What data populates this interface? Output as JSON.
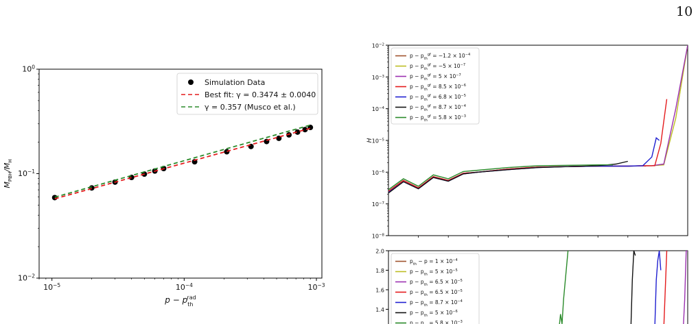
{
  "page_number": "10",
  "chart_data": [
    {
      "type": "scatter",
      "xlabel": "p − p_th^rad",
      "ylabel": "M_PBH/M_H",
      "x_scale": "log",
      "y_scale": "log",
      "xlim": [
        8e-06,
        0.0011
      ],
      "ylim": [
        0.01,
        1
      ],
      "x_ticks": [
        {
          "value": 1e-05,
          "label": "10",
          "exp": "−5"
        },
        {
          "value": 0.0001,
          "label": "10",
          "exp": "−4"
        },
        {
          "value": 0.001,
          "label": "10",
          "exp": "−3"
        }
      ],
      "y_ticks": [
        {
          "value": 0.01,
          "label": "10",
          "exp": "−2"
        },
        {
          "value": 0.1,
          "label": "10",
          "exp": "−1"
        },
        {
          "value": 1,
          "label": "10",
          "exp": "0"
        }
      ],
      "legend_position": "top-right",
      "series": [
        {
          "name": "Simulation Data",
          "kind": "points",
          "color": "#000000",
          "x": [
            1.05e-05,
            2e-05,
            3e-05,
            4e-05,
            5e-05,
            6e-05,
            7e-05,
            0.00012,
            0.00021,
            0.00032,
            0.00042,
            0.00052,
            0.00062,
            0.00072,
            0.00082,
            0.0009
          ],
          "y": [
            0.059,
            0.073,
            0.083,
            0.092,
            0.099,
            0.106,
            0.112,
            0.13,
            0.162,
            0.182,
            0.203,
            0.218,
            0.235,
            0.25,
            0.264,
            0.277
          ]
        },
        {
          "name": "Best fit: γ = 0.3474 ± 0.0040",
          "kind": "line",
          "style": "dashed",
          "color": "#e41a1c",
          "x": [
            1.05e-05,
            0.0009
          ],
          "y": [
            0.0575,
            0.2719
          ]
        },
        {
          "name": "γ = 0.357 (Musco et al.)",
          "kind": "line",
          "style": "dashed",
          "color": "#2a8a2a",
          "x": [
            1.05e-05,
            0.0009
          ],
          "y": [
            0.0595,
            0.2915
          ]
        }
      ]
    },
    {
      "type": "line",
      "ylabel": "H",
      "y_scale": "log",
      "xlim": [
        0,
        10
      ],
      "ylim": [
        1e-08,
        0.01
      ],
      "y_ticks": [
        {
          "value": 1e-08,
          "label": "10",
          "exp": "−8"
        },
        {
          "value": 1e-07,
          "label": "10",
          "exp": "−7"
        },
        {
          "value": 1e-06,
          "label": "10",
          "exp": "−6"
        },
        {
          "value": 1e-05,
          "label": "10",
          "exp": "−5"
        },
        {
          "value": 0.0001,
          "label": "10",
          "exp": "−4"
        },
        {
          "value": 0.001,
          "label": "10",
          "exp": "−3"
        },
        {
          "value": 0.01,
          "label": "10",
          "exp": "−2"
        }
      ],
      "legend_position": "top-left",
      "series": [
        {
          "name": "p − p_th^gf = −1.2 × 10^−4",
          "color": "#a0522d",
          "x": [
            0,
            0.5,
            1,
            1.5,
            2,
            2.5,
            3,
            4,
            5,
            6,
            7,
            8,
            8.4,
            8.6
          ],
          "y": [
            2.5e-07,
            5.5e-07,
            3.2e-07,
            7.2e-07,
            5.5e-07,
            9.2e-07,
            1e-06,
            1.25e-06,
            1.45e-06,
            1.5e-06,
            1.55e-06,
            1.55e-06,
            1.6e-06,
            1.55e-06
          ]
        },
        {
          "name": "p − p_th^gf = −5 × 10^−7",
          "color": "#bcbd22",
          "x": [
            0,
            0.5,
            1,
            1.5,
            2,
            2.5,
            3,
            4,
            5,
            6,
            7,
            8,
            8.8,
            9.2,
            9.6,
            10
          ],
          "y": [
            2.5e-07,
            5.5e-07,
            3.2e-07,
            7.2e-07,
            5.5e-07,
            9.2e-07,
            1e-06,
            1.25e-06,
            1.45e-06,
            1.5e-06,
            1.55e-06,
            1.55e-06,
            1.6e-06,
            1.7e-06,
            5e-05,
            0.01
          ]
        },
        {
          "name": "p − p_th^gf = 5 × 10^−7",
          "color": "#9b30b0",
          "x": [
            0,
            0.5,
            1,
            1.5,
            2,
            2.5,
            3,
            4,
            5,
            6,
            7,
            8,
            8.8,
            9.2,
            9.6,
            10
          ],
          "y": [
            2.5e-07,
            5.5e-07,
            3.2e-07,
            7.2e-07,
            5.5e-07,
            9.2e-07,
            1e-06,
            1.25e-06,
            1.45e-06,
            1.5e-06,
            1.55e-06,
            1.55e-06,
            1.6e-06,
            1.8e-06,
            0.0001,
            0.01
          ]
        },
        {
          "name": "p − p_th^gf = 8.5 × 10^−6",
          "color": "#e41a1c",
          "x": [
            0,
            0.5,
            1,
            1.5,
            2,
            2.5,
            3,
            4,
            5,
            6,
            7,
            8,
            8.5,
            8.9,
            9.1,
            9.3
          ],
          "y": [
            2.5e-07,
            5.5e-07,
            3.2e-07,
            7.2e-07,
            5.5e-07,
            9.2e-07,
            1e-06,
            1.25e-06,
            1.45e-06,
            1.5e-06,
            1.55e-06,
            1.55e-06,
            1.6e-06,
            1.6e-06,
            8e-06,
            0.0002
          ]
        },
        {
          "name": "p − p_th^gf = 6.8 × 10^−5",
          "color": "#1f1fd0",
          "x": [
            0,
            0.5,
            1,
            1.5,
            2,
            2.5,
            3,
            4,
            5,
            6,
            7,
            8,
            8.5,
            8.8,
            8.95,
            9.05
          ],
          "y": [
            2.3e-07,
            5e-07,
            3e-07,
            6.8e-07,
            5.2e-07,
            8.8e-07,
            1e-06,
            1.2e-06,
            1.4e-06,
            1.5e-06,
            1.55e-06,
            1.55e-06,
            1.6e-06,
            3e-06,
            1.2e-05,
            1e-05
          ]
        },
        {
          "name": "p − p_th^gf = 8.7 × 10^−4",
          "color": "#111111",
          "x": [
            0,
            0.5,
            1,
            1.5,
            2,
            2.5,
            3,
            4,
            5,
            6,
            7,
            7.6,
            8
          ],
          "y": [
            2.2e-07,
            5e-07,
            3e-07,
            6.8e-07,
            5.2e-07,
            8.8e-07,
            1e-06,
            1.2e-06,
            1.4e-06,
            1.5e-06,
            1.6e-06,
            1.8e-06,
            2.2e-06
          ]
        },
        {
          "name": "p − p_th^gf = 5.8 × 10^−3",
          "color": "#2a8a2a",
          "x": [
            0,
            0.5,
            1,
            1.5,
            2,
            2.5,
            3,
            4,
            5,
            6,
            7,
            7.5
          ],
          "y": [
            2.8e-07,
            6.2e-07,
            3.6e-07,
            8.2e-07,
            6.2e-07,
            1.05e-06,
            1.15e-06,
            1.4e-06,
            1.6e-06,
            1.65e-06,
            1.7e-06,
            1.7e-06
          ]
        }
      ]
    },
    {
      "type": "line",
      "xlim": [
        0,
        10
      ],
      "ylim": [
        1.2,
        2
      ],
      "y_ticks": [
        {
          "value": 1.4,
          "label": "1.4"
        },
        {
          "value": 1.6,
          "label": "1.6"
        },
        {
          "value": 1.8,
          "label": "1.8"
        },
        {
          "value": 2,
          "label": "2.0"
        }
      ],
      "legend_position": "top-left",
      "series": [
        {
          "name": "p_th − p = 1 × 10^−4",
          "color": "#a0522d",
          "x": [],
          "y": []
        },
        {
          "name": "p − p_th = 5 × 10^−5",
          "color": "#bcbd22",
          "x": [],
          "y": []
        },
        {
          "name": "p − p_th = 6.5 × 10^−5",
          "color": "#9b30b0",
          "x": [
            9.85,
            9.9,
            9.95,
            10
          ],
          "y": [
            1.2,
            1.5,
            2,
            2
          ]
        },
        {
          "name": "p − p_th = 6.5 × 10^−5",
          "color": "#e41a1c",
          "x": [
            9.2,
            9.25,
            9.3
          ],
          "y": [
            1.2,
            1.6,
            2
          ]
        },
        {
          "name": "p − p_th = 8.7 × 10^−4",
          "color": "#1f1fd0",
          "x": [
            8.9,
            8.95,
            9.0,
            9.05,
            9.1
          ],
          "y": [
            1.2,
            1.7,
            1.9,
            2,
            1.8
          ]
        },
        {
          "name": "p − p_th = 5 × 10^−6",
          "color": "#111111",
          "x": [
            8.1,
            8.15,
            8.2,
            8.25
          ],
          "y": [
            1.2,
            1.7,
            2,
            1.95
          ]
        },
        {
          "name": "p − p_th = 5.8 × 10^−3",
          "color": "#2a8a2a",
          "x": [
            5.7,
            5.75,
            5.8,
            5.85,
            6.0
          ],
          "y": [
            1.2,
            1.35,
            1.25,
            1.5,
            2
          ]
        }
      ]
    }
  ]
}
